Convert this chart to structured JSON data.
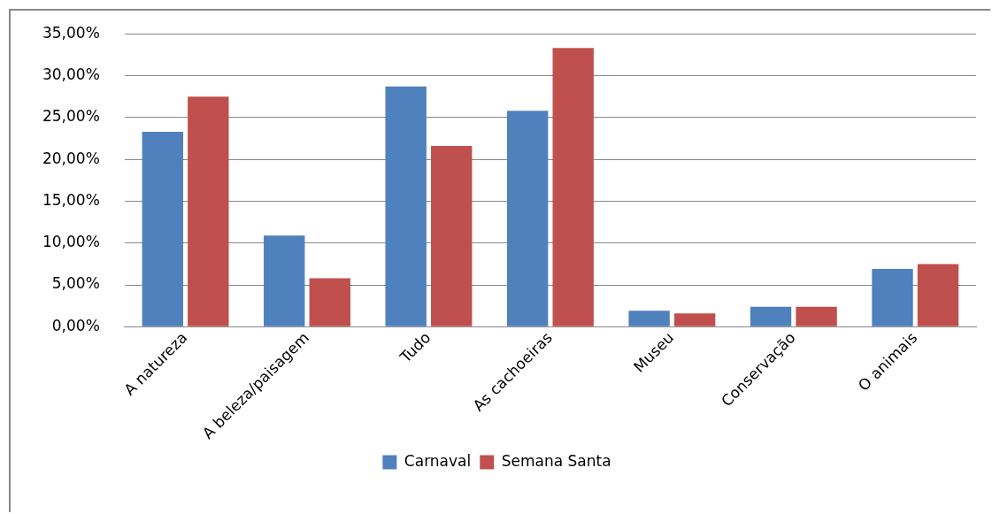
{
  "chart_data": {
    "type": "bar",
    "categories": [
      "A natureza",
      "A beleza/paisagem",
      "Tudo",
      "As cachoeiras",
      "Museu",
      "Conservação",
      "O animais"
    ],
    "series": [
      {
        "name": "Carnaval",
        "color": "#4f81bd",
        "values": [
          23.3,
          10.9,
          28.7,
          25.8,
          1.9,
          2.4,
          6.9
        ]
      },
      {
        "name": "Semana Santa",
        "color": "#c0504d",
        "values": [
          27.5,
          5.8,
          21.6,
          33.3,
          1.6,
          2.4,
          7.5
        ]
      }
    ],
    "ylim": [
      0,
      35
    ],
    "yticks": [
      {
        "value": 0,
        "label": "0,00%"
      },
      {
        "value": 5,
        "label": "5,00%"
      },
      {
        "value": 10,
        "label": "10,00%"
      },
      {
        "value": 15,
        "label": "15,00%"
      },
      {
        "value": 20,
        "label": "20,00%"
      },
      {
        "value": 25,
        "label": "25,00%"
      },
      {
        "value": 30,
        "label": "30,00%"
      },
      {
        "value": 35,
        "label": "35,00%"
      }
    ],
    "grid": "y",
    "legend": "bottom"
  }
}
